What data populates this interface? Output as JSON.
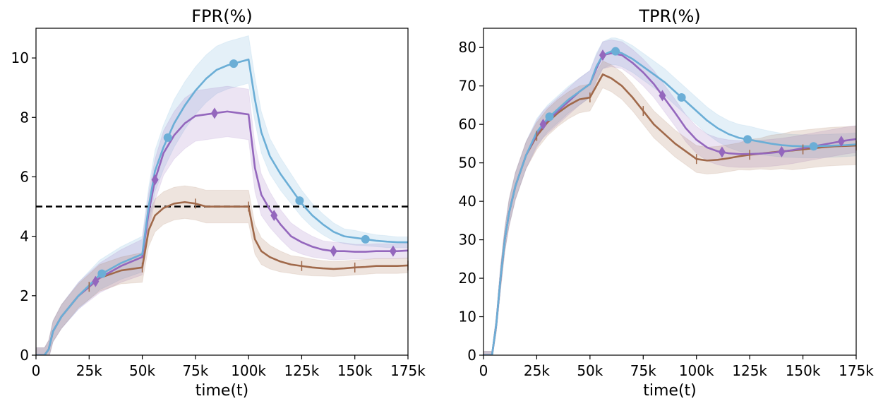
{
  "chart_data": [
    {
      "type": "line",
      "title": "FPR(%)",
      "xlabel": "time(t)",
      "ylabel": "",
      "xlim": [
        0,
        175000
      ],
      "ylim": [
        0,
        11
      ],
      "xticks": [
        0,
        25000,
        50000,
        75000,
        100000,
        125000,
        150000,
        175000
      ],
      "xtick_labels": [
        "0",
        "25k",
        "50k",
        "75k",
        "100k",
        "125k",
        "150k",
        "175k"
      ],
      "yticks": [
        0,
        2,
        4,
        6,
        8,
        10
      ],
      "ytick_labels": [
        "0",
        "2",
        "4",
        "6",
        "8",
        "10"
      ],
      "hline": {
        "y": 5,
        "style": "dashed",
        "color": "#000000"
      },
      "series": [
        {
          "name": "blue-circle",
          "color": "#6baed6",
          "marker": "circle",
          "x": [
            0,
            4000,
            6000,
            8000,
            12000,
            20000,
            30000,
            40000,
            50000,
            53000,
            56000,
            60000,
            65000,
            70000,
            75000,
            80000,
            85000,
            90000,
            95000,
            100000,
            103000,
            106000,
            110000,
            115000,
            120000,
            125000,
            130000,
            135000,
            140000,
            145000,
            150000,
            155000,
            160000,
            165000,
            170000,
            175000
          ],
          "y": [
            0,
            0,
            0.2,
            0.8,
            1.3,
            2.0,
            2.7,
            3.1,
            3.4,
            5.0,
            6.2,
            7.0,
            7.8,
            8.4,
            8.9,
            9.3,
            9.6,
            9.75,
            9.85,
            9.95,
            8.6,
            7.5,
            6.7,
            6.1,
            5.6,
            5.1,
            4.7,
            4.4,
            4.15,
            4.0,
            3.95,
            3.9,
            3.85,
            3.82,
            3.8,
            3.8
          ],
          "band": [
            0.25,
            0.25,
            0.3,
            0.35,
            0.4,
            0.45,
            0.5,
            0.55,
            0.6,
            0.65,
            0.7,
            0.75,
            0.8,
            0.8,
            0.8,
            0.8,
            0.8,
            0.8,
            0.8,
            0.8,
            0.75,
            0.7,
            0.6,
            0.55,
            0.5,
            0.45,
            0.4,
            0.35,
            0.3,
            0.25,
            0.25,
            0.22,
            0.2,
            0.2,
            0.18,
            0.18
          ],
          "marker_x": [
            31000,
            62000,
            93000,
            124000,
            155000
          ]
        },
        {
          "name": "purple-diamond",
          "color": "#9467bd",
          "marker": "diamond",
          "x": [
            0,
            4000,
            6000,
            8000,
            12000,
            20000,
            30000,
            40000,
            50000,
            53000,
            56000,
            60000,
            65000,
            70000,
            75000,
            80000,
            85000,
            90000,
            95000,
            100000,
            103000,
            106000,
            110000,
            115000,
            120000,
            125000,
            130000,
            135000,
            140000,
            145000,
            150000,
            155000,
            160000,
            165000,
            170000,
            175000
          ],
          "y": [
            0,
            0,
            0.2,
            0.8,
            1.3,
            2.0,
            2.6,
            3.0,
            3.3,
            4.8,
            5.9,
            6.8,
            7.4,
            7.8,
            8.05,
            8.1,
            8.15,
            8.2,
            8.15,
            8.1,
            6.3,
            5.4,
            4.9,
            4.4,
            4.0,
            3.8,
            3.65,
            3.55,
            3.5,
            3.5,
            3.48,
            3.48,
            3.5,
            3.5,
            3.5,
            3.52
          ],
          "band": [
            0.25,
            0.25,
            0.3,
            0.35,
            0.4,
            0.45,
            0.5,
            0.55,
            0.6,
            0.65,
            0.7,
            0.75,
            0.8,
            0.85,
            0.85,
            0.85,
            0.85,
            0.85,
            0.85,
            0.85,
            0.8,
            0.7,
            0.6,
            0.5,
            0.45,
            0.4,
            0.35,
            0.3,
            0.3,
            0.28,
            0.25,
            0.25,
            0.25,
            0.25,
            0.25,
            0.25
          ],
          "marker_x": [
            28000,
            56000,
            84000,
            112000,
            140000,
            168000
          ]
        },
        {
          "name": "brown-tick",
          "color": "#a0694a",
          "marker": "vline",
          "x": [
            0,
            4000,
            6000,
            8000,
            12000,
            20000,
            30000,
            40000,
            50000,
            53000,
            56000,
            60000,
            65000,
            70000,
            75000,
            80000,
            85000,
            90000,
            95000,
            100000,
            103000,
            106000,
            110000,
            115000,
            120000,
            125000,
            130000,
            135000,
            140000,
            145000,
            150000,
            155000,
            160000,
            165000,
            170000,
            175000
          ],
          "y": [
            0,
            0,
            0.2,
            0.8,
            1.3,
            2.0,
            2.6,
            2.85,
            2.95,
            4.2,
            4.7,
            4.95,
            5.1,
            5.15,
            5.1,
            5.0,
            5.0,
            5.0,
            5.0,
            5.0,
            3.9,
            3.5,
            3.3,
            3.15,
            3.05,
            3.0,
            2.95,
            2.92,
            2.9,
            2.92,
            2.95,
            2.97,
            3.0,
            3.0,
            3.0,
            3.02
          ],
          "band": [
            0.25,
            0.25,
            0.3,
            0.35,
            0.4,
            0.4,
            0.45,
            0.45,
            0.5,
            0.55,
            0.55,
            0.55,
            0.55,
            0.55,
            0.55,
            0.55,
            0.55,
            0.55,
            0.55,
            0.55,
            0.5,
            0.45,
            0.4,
            0.35,
            0.3,
            0.3,
            0.28,
            0.26,
            0.25,
            0.25,
            0.25,
            0.25,
            0.25,
            0.25,
            0.25,
            0.25
          ],
          "marker_x": [
            25000,
            50000,
            75000,
            100000,
            125000,
            150000,
            175000
          ]
        }
      ]
    },
    {
      "type": "line",
      "title": "TPR(%)",
      "xlabel": "time(t)",
      "ylabel": "",
      "xlim": [
        0,
        175000
      ],
      "ylim": [
        0,
        85
      ],
      "xticks": [
        0,
        25000,
        50000,
        75000,
        100000,
        125000,
        150000,
        175000
      ],
      "xtick_labels": [
        "0",
        "25k",
        "50k",
        "75k",
        "100k",
        "125k",
        "150k",
        "175k"
      ],
      "yticks": [
        0,
        10,
        20,
        30,
        40,
        50,
        60,
        70,
        80
      ],
      "ytick_labels": [
        "0",
        "10",
        "20",
        "30",
        "40",
        "50",
        "60",
        "70",
        "80"
      ],
      "series": [
        {
          "name": "blue-circle",
          "color": "#6baed6",
          "marker": "circle",
          "x": [
            0,
            4000,
            6000,
            8000,
            10000,
            12000,
            15000,
            20000,
            25000,
            30000,
            35000,
            40000,
            45000,
            50000,
            53000,
            56000,
            60000,
            62000,
            65000,
            70000,
            75000,
            80000,
            85000,
            90000,
            95000,
            100000,
            105000,
            110000,
            115000,
            120000,
            125000,
            130000,
            135000,
            140000,
            145000,
            150000,
            155000,
            160000,
            165000,
            170000,
            175000
          ],
          "y": [
            0,
            0,
            8,
            20,
            30,
            37,
            44,
            52,
            58,
            61.5,
            64,
            66.5,
            68.5,
            70.5,
            75,
            78,
            79,
            79,
            78.5,
            77,
            75,
            73,
            71,
            68.5,
            66,
            63.5,
            61,
            59,
            57.5,
            56.5,
            56,
            55.5,
            55,
            54.6,
            54.4,
            54.3,
            54.3,
            54.4,
            54.5,
            54.6,
            54.8
          ],
          "band": [
            1,
            1,
            2,
            3,
            3,
            3.5,
            3.5,
            3.5,
            3.5,
            3.5,
            3.5,
            3.5,
            3.5,
            3.5,
            3.5,
            3.5,
            3.5,
            3.5,
            3.5,
            3.5,
            3.5,
            3.5,
            3.5,
            3.5,
            3.5,
            3.5,
            3.5,
            3.5,
            3.5,
            3.5,
            3.5,
            3.3,
            3.2,
            3.1,
            3.0,
            3.0,
            3.0,
            3.0,
            3.0,
            3.0,
            3.0
          ],
          "marker_x": [
            31000,
            62000,
            93000,
            124000,
            155000
          ]
        },
        {
          "name": "purple-diamond",
          "color": "#9467bd",
          "marker": "diamond",
          "x": [
            0,
            4000,
            6000,
            8000,
            10000,
            12000,
            15000,
            20000,
            25000,
            28000,
            35000,
            40000,
            45000,
            50000,
            53000,
            56000,
            60000,
            65000,
            70000,
            75000,
            80000,
            84000,
            90000,
            95000,
            100000,
            105000,
            110000,
            112000,
            115000,
            120000,
            125000,
            130000,
            135000,
            140000,
            145000,
            150000,
            155000,
            160000,
            165000,
            170000,
            175000
          ],
          "y": [
            0,
            0,
            8,
            20,
            30,
            37,
            44,
            52,
            57.5,
            60,
            63.5,
            66,
            68.5,
            70.5,
            74.5,
            78,
            78.5,
            78,
            76,
            73.5,
            70.5,
            67.5,
            63,
            59,
            56,
            54,
            53,
            52.8,
            52.5,
            52.3,
            52.3,
            52.4,
            52.6,
            52.9,
            53.3,
            53.8,
            54.3,
            54.8,
            55.3,
            55.8,
            56.2
          ],
          "band": [
            1,
            1,
            2,
            3,
            3,
            3.5,
            3.5,
            3.5,
            3.5,
            3.5,
            3.5,
            3.5,
            3.5,
            3.5,
            3.5,
            3.5,
            3.5,
            3.5,
            3.5,
            3.5,
            3.5,
            3.5,
            3.5,
            3.5,
            3.5,
            3.5,
            3.5,
            3.5,
            3.5,
            3.5,
            3.5,
            3.5,
            3.5,
            3.5,
            3.5,
            3.5,
            3.5,
            3.5,
            3.5,
            3.5,
            3.5
          ],
          "marker_x": [
            28000,
            56000,
            84000,
            112000,
            140000,
            168000
          ]
        },
        {
          "name": "brown-tick",
          "color": "#a0694a",
          "marker": "vline",
          "x": [
            0,
            4000,
            6000,
            8000,
            10000,
            12000,
            15000,
            20000,
            25000,
            30000,
            35000,
            40000,
            45000,
            50000,
            53000,
            56000,
            60000,
            65000,
            70000,
            75000,
            80000,
            85000,
            90000,
            95000,
            100000,
            105000,
            110000,
            115000,
            120000,
            125000,
            130000,
            135000,
            140000,
            145000,
            150000,
            155000,
            160000,
            165000,
            170000,
            175000
          ],
          "y": [
            0,
            0,
            8,
            20,
            30,
            37,
            44,
            52,
            57,
            60.5,
            63,
            65,
            66.5,
            67,
            70,
            73,
            72,
            70,
            67,
            63.5,
            60,
            57.5,
            55,
            53,
            51,
            50.6,
            50.8,
            51.2,
            51.7,
            52.1,
            52.4,
            52.7,
            53,
            53.2,
            53.5,
            53.8,
            54.1,
            54.3,
            54.4,
            54.5
          ],
          "band": [
            1,
            1,
            2,
            3,
            3,
            3.5,
            3.5,
            3.5,
            3.5,
            3.5,
            3.5,
            3.5,
            3.5,
            3.5,
            3.5,
            3.5,
            3.5,
            3.5,
            3.5,
            3.5,
            3.5,
            3.5,
            3.5,
            3.5,
            3.5,
            3.5,
            3.5,
            3.5,
            3.5,
            4,
            4,
            4.5,
            4.5,
            5,
            5,
            5,
            5,
            5,
            5,
            5
          ],
          "marker_x": [
            25000,
            50000,
            75000,
            100000,
            125000,
            150000,
            175000
          ]
        }
      ]
    }
  ]
}
